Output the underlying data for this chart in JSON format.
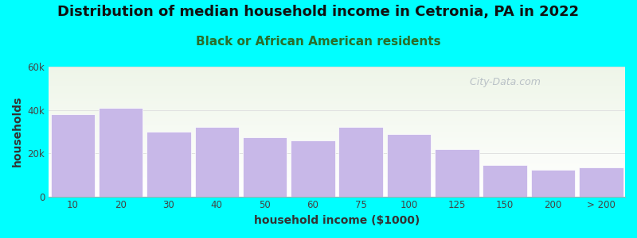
{
  "title": "Distribution of median household income in Cetronia, PA in 2022",
  "subtitle": "Black or African American residents",
  "xlabel": "household income ($1000)",
  "ylabel": "households",
  "background_outer": "#00FFFF",
  "background_inner_top": "#eef5e8",
  "background_inner_bottom": "#ffffff",
  "bar_color": "#c8b8e8",
  "bar_edge_color": "#ffffff",
  "categories": [
    "10",
    "20",
    "30",
    "40",
    "50",
    "60",
    "75",
    "100",
    "125",
    "150",
    "200",
    "> 200"
  ],
  "values": [
    38000,
    41000,
    30000,
    32000,
    27500,
    26000,
    32000,
    29000,
    22000,
    14500,
    12500,
    13500
  ],
  "ylim": [
    0,
    60000
  ],
  "yticks": [
    0,
    20000,
    40000,
    60000
  ],
  "ytick_labels": [
    "0",
    "20k",
    "40k",
    "60k"
  ],
  "title_fontsize": 13,
  "subtitle_fontsize": 11,
  "axis_label_fontsize": 10,
  "tick_fontsize": 8.5,
  "watermark_text": "  City-Data.com",
  "watermark_color": "#b0b8c0",
  "title_color": "#111111",
  "subtitle_color": "#2a6e2a"
}
